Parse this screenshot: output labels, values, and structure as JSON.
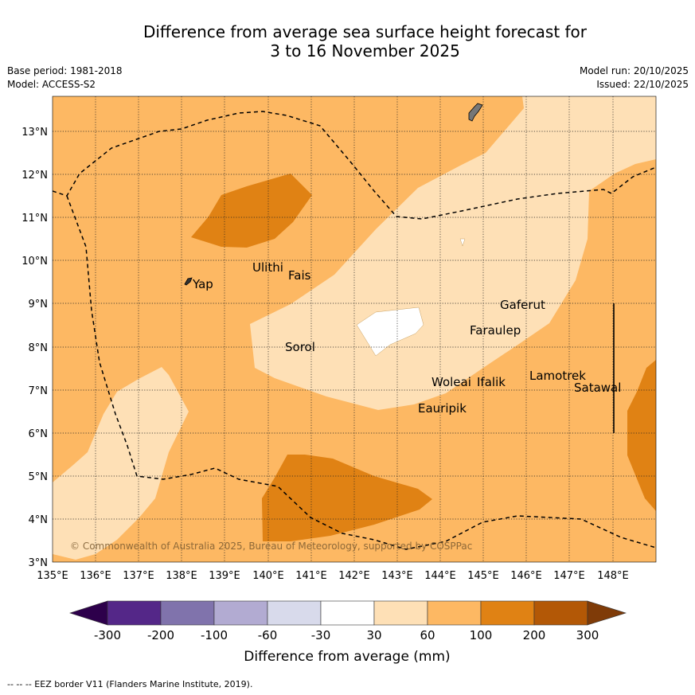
{
  "title_line1": "Difference from average sea surface height forecast for",
  "title_line2": "3 to 16 November 2025",
  "base_period": "Base period: 1981-2018",
  "model": "Model: ACCESS-S2",
  "model_run": "Model run: 20/10/2025",
  "issued": "Issued: 22/10/2025",
  "copyright": "© Commonwealth of Australia 2025, Bureau of Meteorology, supported by COSPPac",
  "footer": "--  --  -- EEZ border V11 (Flanders Marine Institute, 2019).",
  "axes": {
    "x_ticks": [
      "135°E",
      "136°E",
      "137°E",
      "138°E",
      "139°E",
      "140°E",
      "141°E",
      "142°E",
      "143°E",
      "144°E",
      "145°E",
      "146°E",
      "147°E",
      "148°E"
    ],
    "y_ticks": [
      "13°N",
      "12°N",
      "11°N",
      "10°N",
      "9°N",
      "8°N",
      "7°N",
      "6°N",
      "5°N",
      "4°N",
      "3°N"
    ]
  },
  "places": [
    {
      "name": "Yap"
    },
    {
      "name": "Ulithi"
    },
    {
      "name": "Fais"
    },
    {
      "name": "Gaferut"
    },
    {
      "name": "Faraulep"
    },
    {
      "name": "Sorol"
    },
    {
      "name": "Woleai"
    },
    {
      "name": "Ifalik"
    },
    {
      "name": "Lamotrek"
    },
    {
      "name": "Satawal"
    },
    {
      "name": "Eauripik"
    }
  ],
  "colorbar": {
    "label": "Difference from average (mm)",
    "ticks": [
      "-300",
      "-200",
      "-100",
      "-60",
      "-30",
      "30",
      "60",
      "100",
      "200",
      "300"
    ],
    "colors": [
      "#2d004b",
      "#542788",
      "#8073ac",
      "#b2abd2",
      "#d8daeb",
      "#ffffff",
      "#fee0b6",
      "#fdb863",
      "#e08214",
      "#b35806",
      "#7f3b08"
    ]
  }
}
